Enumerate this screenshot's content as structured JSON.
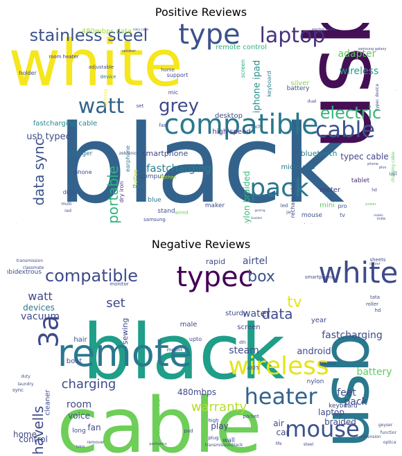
{
  "chart_data": [
    {
      "type": "wordcloud",
      "title": "Positive Reviews",
      "words": [
        {
          "text": "black",
          "weight": 100,
          "color": "#33638d"
        },
        {
          "text": "usb",
          "weight": 88,
          "color": "#440f54"
        },
        {
          "text": "white",
          "weight": 68,
          "color": "#f5e61d"
        },
        {
          "text": "compatible",
          "weight": 40,
          "color": "#2a788e"
        },
        {
          "text": "type",
          "weight": 38,
          "color": "#3a528b"
        },
        {
          "text": "watt",
          "weight": 30,
          "color": "#33638d"
        },
        {
          "text": "cable",
          "weight": 32,
          "color": "#3b528b"
        },
        {
          "text": "pack",
          "weight": 30,
          "color": "#2a788e"
        },
        {
          "text": "laptop",
          "weight": 28,
          "color": "#46327e"
        },
        {
          "text": "stainless steel",
          "weight": 24,
          "color": "#3b528b"
        },
        {
          "text": "grey",
          "weight": 24,
          "color": "#3e4a89"
        },
        {
          "text": "electric",
          "weight": 22,
          "color": "#35b779"
        },
        {
          "text": "portable",
          "weight": 20,
          "color": "#2fb47c"
        },
        {
          "text": "data sync",
          "weight": 20,
          "color": "#3b528b"
        },
        {
          "text": "fastcharging",
          "weight": 15,
          "color": "#277f8e"
        },
        {
          "text": "iphone ipad",
          "weight": 14,
          "color": "#21918c"
        },
        {
          "text": "adapter",
          "weight": 14,
          "color": "#5ec962"
        },
        {
          "text": "wireless",
          "weight": 14,
          "color": "#1f9e89"
        },
        {
          "text": "usb typec",
          "weight": 13,
          "color": "#3e4a89"
        },
        {
          "text": "nylon braided",
          "weight": 12,
          "color": "#37b878"
        },
        {
          "text": "typec cable",
          "weight": 12,
          "color": "#414487"
        },
        {
          "text": "smartphone",
          "weight": 11,
          "color": "#3e4989"
        },
        {
          "text": "bluetooth",
          "weight": 11,
          "color": "#287d8e"
        },
        {
          "text": "micro usb",
          "weight": 10,
          "color": "#2c728e"
        },
        {
          "text": "desktop",
          "weight": 10,
          "color": "#3e4a89"
        },
        {
          "text": "fastcharging cable",
          "weight": 10,
          "color": "#25858e"
        },
        {
          "text": "high speed",
          "weight": 10,
          "color": "#46307e"
        },
        {
          "text": "480mbps data",
          "weight": 10,
          "color": "#9fda3a"
        },
        {
          "text": "remote control",
          "weight": 10,
          "color": "#2db27d"
        },
        {
          "text": "battery",
          "weight": 9,
          "color": "#3b528b"
        },
        {
          "text": "tablet",
          "weight": 9,
          "color": "#472d7b"
        },
        {
          "text": "meter",
          "weight": 10,
          "color": "#443a83"
        },
        {
          "text": "mini",
          "weight": 10,
          "color": "#5ec962"
        },
        {
          "text": "silver",
          "weight": 10,
          "color": "#86d549"
        },
        {
          "text": "computer",
          "weight": 9,
          "color": "#3b528b"
        },
        {
          "text": "charger",
          "weight": 9,
          "color": "#2c728e"
        },
        {
          "text": "stand",
          "weight": 9,
          "color": "#3b528b"
        },
        {
          "text": "maker",
          "weight": 9,
          "color": "#3e4a89"
        },
        {
          "text": "blue",
          "weight": 9,
          "color": "#2c728e"
        },
        {
          "text": "mouse",
          "weight": 9,
          "color": "#3b528b"
        },
        {
          "text": "keyboard",
          "weight": 8,
          "color": "#287d8e"
        },
        {
          "text": "screen",
          "weight": 8,
          "color": "#25ab82"
        },
        {
          "text": "rechargeable",
          "weight": 8,
          "color": "#3e4a89"
        },
        {
          "text": "dry iron",
          "weight": 8,
          "color": "#46337e"
        },
        {
          "text": "coffee",
          "weight": 8,
          "color": "#c2df23"
        },
        {
          "text": "earphone",
          "weight": 8,
          "color": "#2a788e"
        },
        {
          "text": "support",
          "weight": 8,
          "color": "#3e4a89"
        },
        {
          "text": "mic",
          "weight": 8,
          "color": "#433e85"
        },
        {
          "text": "holder",
          "weight": 8,
          "color": "#3e4a89"
        },
        {
          "text": "room heater",
          "weight": 7,
          "color": "#453781"
        },
        {
          "text": "iphone",
          "weight": 8,
          "color": "#3e4a89"
        },
        {
          "text": "digital",
          "weight": 8,
          "color": "#3b528b"
        },
        {
          "text": "cord",
          "weight": 8,
          "color": "#2c728e"
        },
        {
          "text": "samsung",
          "weight": 7,
          "color": "#3e4a89"
        },
        {
          "text": "adjustable",
          "weight": 7,
          "color": "#3e4a89"
        },
        {
          "text": "clothes",
          "weight": 7,
          "color": "#b5de2b"
        },
        {
          "text": "set",
          "weight": 7,
          "color": "#3e4a89"
        },
        {
          "text": "pro",
          "weight": 8,
          "color": "#3b528b"
        },
        {
          "text": "usb c",
          "weight": 8,
          "color": "#3b528b"
        },
        {
          "text": "tv",
          "weight": 8,
          "color": "#3b528b"
        },
        {
          "text": "device",
          "weight": 7,
          "color": "#2a788e"
        },
        {
          "text": "inch",
          "weight": 7,
          "color": "#3e4a89"
        },
        {
          "text": "home",
          "weight": 7,
          "color": "#3e4a89"
        },
        {
          "text": "fast",
          "weight": 7,
          "color": "#3e4a89"
        },
        {
          "text": "led",
          "weight": 7,
          "color": "#3e4a89"
        },
        {
          "text": "wired",
          "weight": 7,
          "color": "#7ad151"
        },
        {
          "text": "dual",
          "weight": 6,
          "color": "#3e4a89"
        },
        {
          "text": "lightning",
          "weight": 6,
          "color": "#fde725"
        },
        {
          "text": "zebronics",
          "weight": 6,
          "color": "#3e4a89"
        },
        {
          "text": "red",
          "weight": 6,
          "color": "#3b528b"
        },
        {
          "text": "multi",
          "weight": 6,
          "color": "#3e4a89"
        },
        {
          "text": "amazonbasics",
          "weight": 6,
          "color": "#3e4a89"
        },
        {
          "text": "india",
          "weight": 5,
          "color": "#3e4a89"
        },
        {
          "text": "year warranty",
          "weight": 6,
          "color": "#3e4a89"
        },
        {
          "text": "typec device",
          "weight": 6,
          "color": "#3e4a89"
        },
        {
          "text": "charging cable",
          "weight": 6,
          "color": "#5ec962"
        },
        {
          "text": "samsung galaxy",
          "weight": 5,
          "color": "#3e4a89"
        },
        {
          "text": "electric kettle",
          "weight": 5,
          "color": "#3e4a89"
        },
        {
          "text": "hdmi cable",
          "weight": 4,
          "color": "#3e4a89"
        },
        {
          "text": "speaker",
          "weight": 5,
          "color": "#3e4a89"
        },
        {
          "text": "jar",
          "weight": 6,
          "color": "#3e4a89"
        },
        {
          "text": "hd",
          "weight": 6,
          "color": "#3e4a89"
        },
        {
          "text": "power",
          "weight": 5,
          "color": "#5ec962"
        },
        {
          "text": "phone",
          "weight": 5,
          "color": "#3e4a89"
        },
        {
          "text": "plus",
          "weight": 5,
          "color": "#3e4a89"
        },
        {
          "text": "gaming",
          "weight": 4,
          "color": "#3e4a89"
        },
        {
          "text": "braided",
          "weight": 4,
          "color": "#3e4a89"
        },
        {
          "text": "mobile",
          "weight": 4,
          "color": "#3e4a89"
        },
        {
          "text": "size",
          "weight": 4,
          "color": "#3e4a89"
        }
      ]
    },
    {
      "type": "wordcloud",
      "title": "Negative Reviews",
      "words": [
        {
          "text": "black",
          "weight": 100,
          "color": "#1f9e89"
        },
        {
          "text": "cable",
          "weight": 95,
          "color": "#6ece58"
        },
        {
          "text": "usb",
          "weight": 88,
          "color": "#2a788e"
        },
        {
          "text": "remote",
          "weight": 50,
          "color": "#2a788e"
        },
        {
          "text": "white",
          "weight": 42,
          "color": "#3e4a89"
        },
        {
          "text": "typec",
          "weight": 40,
          "color": "#440154"
        },
        {
          "text": "wireless",
          "weight": 36,
          "color": "#e5e419"
        },
        {
          "text": "heater",
          "weight": 34,
          "color": "#33638d"
        },
        {
          "text": "mouse",
          "weight": 32,
          "color": "#3b528b"
        },
        {
          "text": "3a",
          "weight": 30,
          "color": "#3e4a89"
        },
        {
          "text": "compatible",
          "weight": 24,
          "color": "#3e4a89"
        },
        {
          "text": "box",
          "weight": 22,
          "color": "#3b528b"
        },
        {
          "text": "data",
          "weight": 22,
          "color": "#3e4a89"
        },
        {
          "text": "tv",
          "weight": 22,
          "color": "#e5e419"
        },
        {
          "text": "havells",
          "weight": 20,
          "color": "#3e4a89"
        },
        {
          "text": "charging",
          "weight": 18,
          "color": "#3e4a89"
        },
        {
          "text": "warranty",
          "weight": 18,
          "color": "#b5de2b"
        },
        {
          "text": "set",
          "weight": 18,
          "color": "#3e4a89"
        },
        {
          "text": "watt",
          "weight": 16,
          "color": "#3e4a89"
        },
        {
          "text": "fastcharging",
          "weight": 14,
          "color": "#3e4a89"
        },
        {
          "text": "water",
          "weight": 14,
          "color": "#3e4a89"
        },
        {
          "text": "airtel",
          "weight": 14,
          "color": "#3e4a89"
        },
        {
          "text": "vacuum",
          "weight": 14,
          "color": "#3e4a89"
        },
        {
          "text": "battery",
          "weight": 14,
          "color": "#5ec962"
        },
        {
          "text": "steam",
          "weight": 14,
          "color": "#3e4a89"
        },
        {
          "text": "feet",
          "weight": 14,
          "color": "#3e4a89"
        },
        {
          "text": "room",
          "weight": 14,
          "color": "#3e4a89"
        },
        {
          "text": "pack",
          "weight": 14,
          "color": "#3e4a89"
        },
        {
          "text": "android",
          "weight": 13,
          "color": "#3e4a89"
        },
        {
          "text": "devices",
          "weight": 12,
          "color": "#2a788e"
        },
        {
          "text": "voice",
          "weight": 12,
          "color": "#3e4a89"
        },
        {
          "text": "braided",
          "weight": 12,
          "color": "#3e4a89"
        },
        {
          "text": "laptop",
          "weight": 12,
          "color": "#3e4a89"
        },
        {
          "text": "control",
          "weight": 12,
          "color": "#3e4a89"
        },
        {
          "text": "home",
          "weight": 12,
          "color": "#3e4a89"
        },
        {
          "text": "480mbps",
          "weight": 12,
          "color": "#3e4a89"
        },
        {
          "text": "play",
          "weight": 12,
          "color": "#3e4a89"
        },
        {
          "text": "car",
          "weight": 12,
          "color": "#3e4a89"
        },
        {
          "text": "air",
          "weight": 12,
          "color": "#3e4a89"
        },
        {
          "text": "rapid",
          "weight": 11,
          "color": "#3e4a89"
        },
        {
          "text": "sewing",
          "weight": 11,
          "color": "#3e4a89"
        },
        {
          "text": "fan",
          "weight": 12,
          "color": "#3e4a89"
        },
        {
          "text": "ambidextrous",
          "weight": 9,
          "color": "#3e4a89"
        },
        {
          "text": "cleaner",
          "weight": 10,
          "color": "#3e4a89"
        },
        {
          "text": "tanglefree",
          "weight": 10,
          "color": "#6ece58"
        },
        {
          "text": "boat",
          "weight": 10,
          "color": "#3e4a89"
        },
        {
          "text": "year",
          "weight": 10,
          "color": "#3e4a89"
        },
        {
          "text": "male",
          "weight": 10,
          "color": "#3e4a89"
        },
        {
          "text": "screen",
          "weight": 10,
          "color": "#3e4a89"
        },
        {
          "text": "sturdy",
          "weight": 10,
          "color": "#3e4a89"
        },
        {
          "text": "hair",
          "weight": 10,
          "color": "#3e4a89"
        },
        {
          "text": "keyboard",
          "weight": 9,
          "color": "#3e4a89"
        },
        {
          "text": "nylon",
          "weight": 9,
          "color": "#3e4a89"
        },
        {
          "text": "wall",
          "weight": 9,
          "color": "#3e4a89"
        },
        {
          "text": "long",
          "weight": 9,
          "color": "#3e4a89"
        },
        {
          "text": "sheets",
          "weight": 7,
          "color": "#3e4a89"
        },
        {
          "text": "transmission",
          "weight": 6,
          "color": "#3e4a89"
        },
        {
          "text": "classmate",
          "weight": 6,
          "color": "#3e4a89"
        },
        {
          "text": "monitor",
          "weight": 7,
          "color": "#3e4a89"
        },
        {
          "text": "dth",
          "weight": 6,
          "color": "#3e4a89"
        },
        {
          "text": "tata",
          "weight": 7,
          "color": "#3e4a89"
        },
        {
          "text": "roller",
          "weight": 7,
          "color": "#3e4a89"
        },
        {
          "text": "hd",
          "weight": 7,
          "color": "#3e4a89"
        },
        {
          "text": "7seven",
          "weight": 7,
          "color": "#3e4a89"
        },
        {
          "text": "smartphone",
          "weight": 7,
          "color": "#3e4a89"
        },
        {
          "text": "upto",
          "weight": 8,
          "color": "#3e4a89"
        },
        {
          "text": "pocket",
          "weight": 7,
          "color": "#3e4a89"
        },
        {
          "text": "plug",
          "weight": 7,
          "color": "#3e4a89"
        },
        {
          "text": "function",
          "weight": 6,
          "color": "#3e4a89"
        },
        {
          "text": "optical",
          "weight": 6,
          "color": "#3e4a89"
        },
        {
          "text": "geyser",
          "weight": 6,
          "color": "#3e4a89"
        },
        {
          "text": "extension",
          "weight": 6,
          "color": "#3e4a89"
        },
        {
          "text": "a325",
          "weight": 7,
          "color": "#3e4a89"
        },
        {
          "text": "high",
          "weight": 7,
          "color": "#3e4a89"
        },
        {
          "text": "pad",
          "weight": 7,
          "color": "#3e4a89"
        },
        {
          "text": "mount",
          "weight": 7,
          "color": "#3e4a89"
        },
        {
          "text": "duty",
          "weight": 6,
          "color": "#3e4a89"
        },
        {
          "text": "sync",
          "weight": 7,
          "color": "#3e4a89"
        },
        {
          "text": "laundry",
          "weight": 6,
          "color": "#3e4a89"
        },
        {
          "text": "steel",
          "weight": 6,
          "color": "#3e4a89"
        },
        {
          "text": "life",
          "weight": 6,
          "color": "#3e4a89"
        },
        {
          "text": "hdmi",
          "weight": 5,
          "color": "#3e4a89"
        },
        {
          "text": "portronics",
          "weight": 5,
          "color": "#3e4a89"
        },
        {
          "text": "transmissionblack",
          "weight": 6,
          "color": "#3e4a89"
        },
        {
          "text": "remover",
          "weight": 6,
          "color": "#3e4a89"
        },
        {
          "text": "bravia",
          "weight": 5,
          "color": "#3e4a89"
        },
        {
          "text": "colour",
          "weight": 5,
          "color": "#3e4a89"
        }
      ]
    }
  ]
}
